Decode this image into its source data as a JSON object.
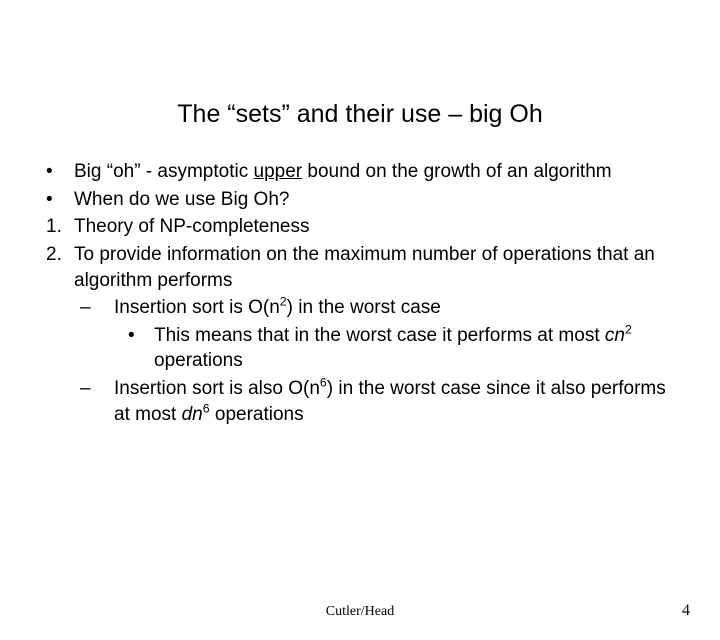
{
  "title": "The “sets” and their use – big Oh",
  "bullets": {
    "b1_pre": "Big “oh” - asymptotic ",
    "b1_upper": "upper",
    "b1_post": " bound on the growth of an algorithm",
    "b2": "When do we use Big Oh?",
    "n1": "Theory of NP-completeness",
    "n2": "To provide information on the maximum number of operations that an algorithm performs",
    "d1_pre": "Insertion sort is O(n",
    "d1_sup": "2",
    "d1_post": ") in the worst case",
    "dd1_pre": "This means that in the worst case it performs at most ",
    "dd1_cn": "cn",
    "dd1_sup": "2",
    "dd1_post": " operations",
    "d2_pre": "Insertion sort is also O(n",
    "d2_sup": "6",
    "d2_mid": ") in the worst case since it also performs at most ",
    "d2_dn": "dn",
    "d2_sup2": "6",
    "d2_post": " operations"
  },
  "footer": {
    "center": "Cutler/Head",
    "page": "4"
  },
  "markers": {
    "bullet": "•",
    "dash": "–",
    "b1": "1.",
    "b2": "2."
  },
  "colors": {
    "text": "#000000",
    "bg": "#ffffff"
  }
}
